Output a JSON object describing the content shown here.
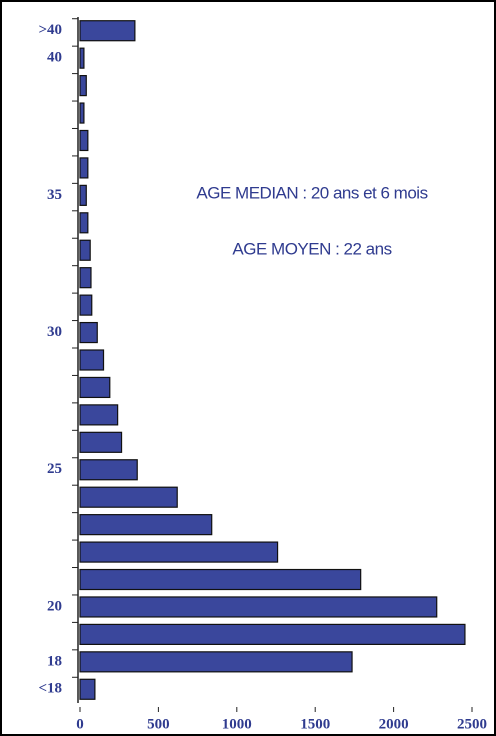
{
  "chart_data": {
    "type": "bar",
    "orientation": "horizontal",
    "annotations": [
      "AGE MEDIAN : 20 ans et 6 mois",
      "AGE MOYEN : 22 ans"
    ],
    "categories": [
      ">40",
      "40",
      null,
      null,
      null,
      null,
      "35",
      null,
      null,
      null,
      null,
      "30",
      null,
      null,
      null,
      null,
      "25",
      null,
      null,
      null,
      null,
      "20",
      null,
      "18",
      "<18"
    ],
    "values": [
      350,
      25,
      40,
      25,
      50,
      50,
      40,
      50,
      65,
      70,
      75,
      110,
      150,
      190,
      240,
      265,
      365,
      620,
      840,
      1260,
      1790,
      2275,
      2455,
      1735,
      95
    ],
    "color": "#3a479c",
    "xlim": [
      0,
      2500
    ],
    "xticks": [
      0,
      500,
      1000,
      1500,
      2000,
      2500
    ],
    "grid": false
  }
}
